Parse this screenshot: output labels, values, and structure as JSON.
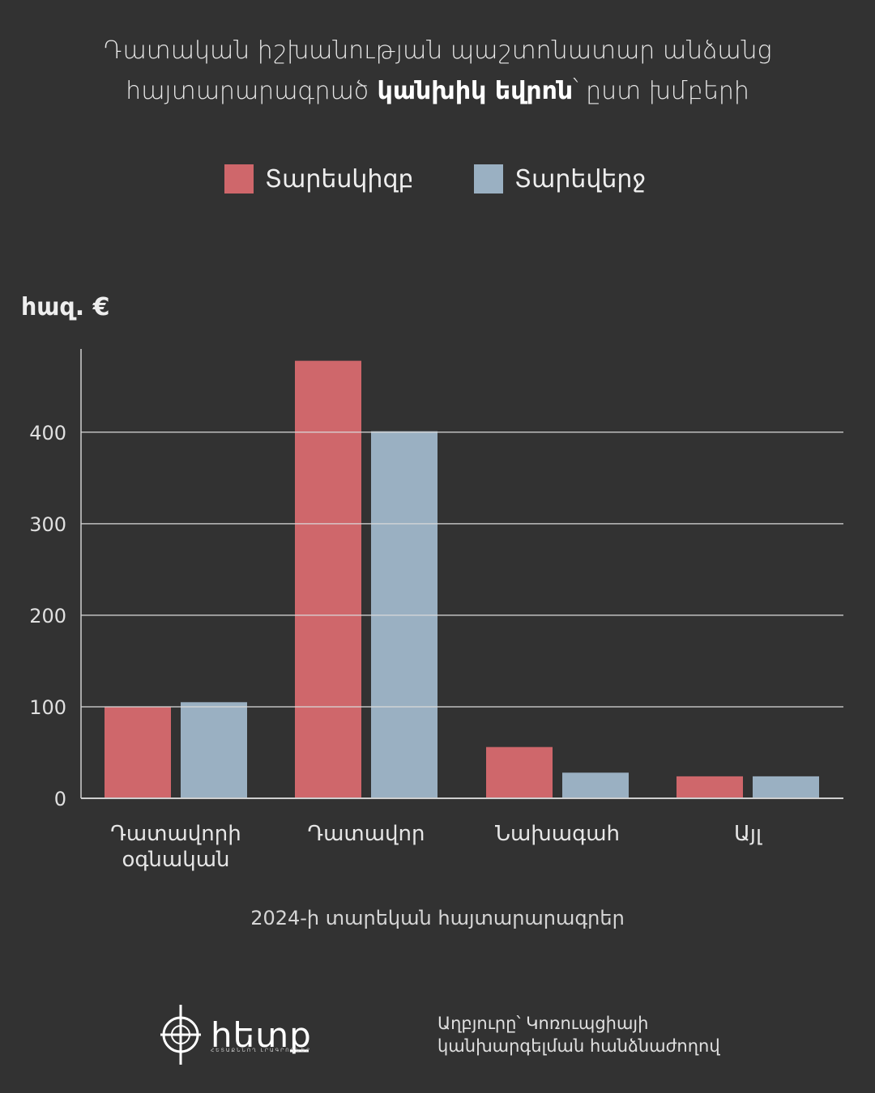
{
  "header": {
    "title_line1": "Դատական իշխանության պաշտոնատար անձանց",
    "title_line2_prefix": "հայտարարագրած",
    "title_line2_bold": "կանխիկ եվրոն",
    "title_line2_suffix": "՝ ըստ խմբերի"
  },
  "colors": {
    "background": "#323232",
    "series_start": "#cf676b",
    "series_end": "#9ab0c2",
    "grid": "#d8d8d8"
  },
  "chart_data": {
    "type": "bar",
    "unit_label": "հազ. €",
    "categories": [
      [
        "Դատավորի",
        "օգնական"
      ],
      [
        "Դատավոր"
      ],
      [
        "Նախագահ"
      ],
      [
        "Այլ"
      ]
    ],
    "series": [
      {
        "name": "Տարեսկիզբ",
        "values": [
          100,
          478,
          56,
          24
        ]
      },
      {
        "name": "Տարեվերջ",
        "values": [
          105,
          401,
          28,
          24
        ]
      }
    ],
    "yticks": [
      0,
      100,
      200,
      300,
      400
    ],
    "ylim": [
      0,
      490
    ],
    "grid": true,
    "legend_position": "top-center",
    "xlabel": "2024-ի տարեկան հայտարարագրեր"
  },
  "footer": {
    "logo_name": "հետք",
    "logo_tagline": "ՀԵՏԱՔՆՆՈՂ ԼՐԱԳՐՈՂՆԵՐ",
    "logo_icon": "crosshair-icon",
    "source_line1": "Աղբյուրը՝ Կոռուպցիայի",
    "source_line2": "կանխարգելման հանձնաժողով"
  }
}
